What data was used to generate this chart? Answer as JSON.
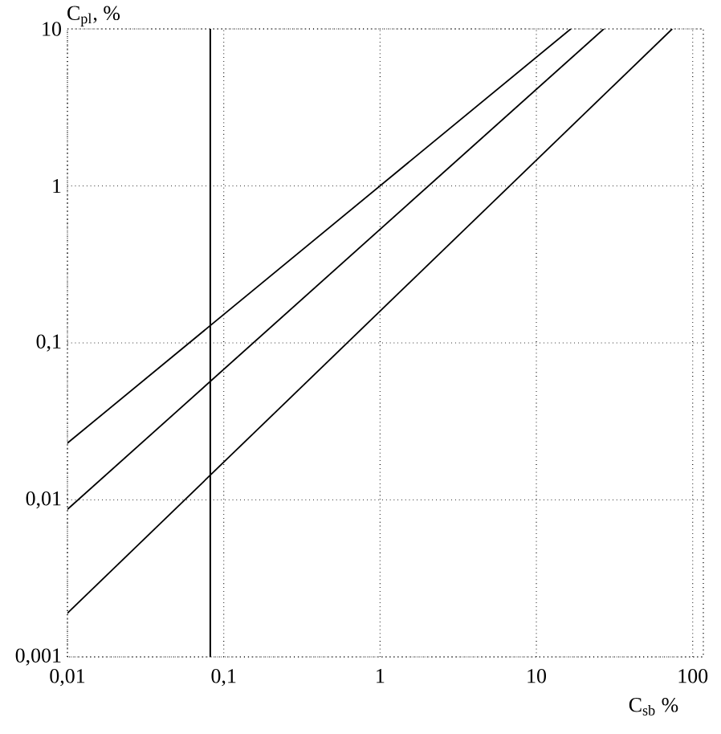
{
  "chart_data": {
    "type": "line",
    "xlabel": "C$_{sb}$ %",
    "ylabel": "C$_{pl}$, %",
    "log": "xy",
    "grid": true,
    "line_style": "solid",
    "marker": "none",
    "xlim": [
      0.01,
      117
    ],
    "ylim": [
      0.001,
      10
    ],
    "xticks": [
      {
        "value": 0.01,
        "label": "0,01"
      },
      {
        "value": 0.1,
        "label": "0,1"
      },
      1,
      10,
      100
    ],
    "yticks": [
      {
        "value": 0.001,
        "label": "0,001"
      },
      {
        "value": 0.01,
        "label": "0,01"
      },
      {
        "value": 0.1,
        "label": "0,1"
      },
      1,
      10
    ],
    "ref_lines": [
      {
        "axis": "x",
        "value": 0.082,
        "color": "#000000"
      }
    ],
    "series": [
      {
        "color": "#000000",
        "x": [
          0.01,
          16.6
        ],
        "values": [
          0.023,
          10
        ]
      },
      {
        "color": "#000000",
        "x": [
          0.01,
          27
        ],
        "values": [
          0.0087,
          10
        ]
      },
      {
        "color": "#000000",
        "x": [
          0.01,
          74
        ],
        "values": [
          0.0019,
          10
        ]
      }
    ]
  }
}
